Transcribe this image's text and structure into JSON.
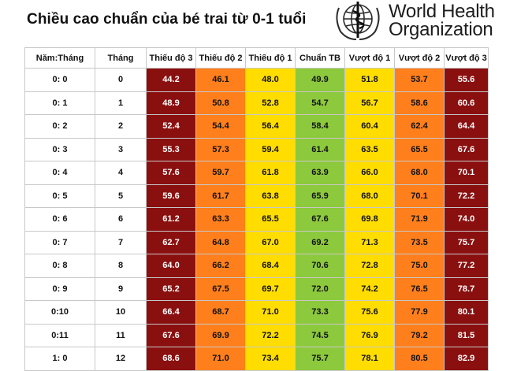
{
  "title": "Chiều cao chuẩn của bé trai từ 0-1 tuổi",
  "logo": {
    "line1": "World Health",
    "line2": "Organization",
    "icon": "who-emblem-icon"
  },
  "table": {
    "headers": [
      "Năm:Tháng",
      "Tháng",
      "Thiếu độ 3",
      "Thiếu độ 2",
      "Thiếu độ 1",
      "Chuẩn TB",
      "Vượt độ 1",
      "Vượt độ 2",
      "Vượt độ 3"
    ],
    "column_colors": [
      "#ffffff",
      "#ffffff",
      "#8a1010",
      "#ff7f1c",
      "#ffdd00",
      "#8cc93c",
      "#ffdd00",
      "#ff7f1c",
      "#8a1010"
    ],
    "rows": [
      [
        "0: 0",
        "0",
        "44.2",
        "46.1",
        "48.0",
        "49.9",
        "51.8",
        "53.7",
        "55.6"
      ],
      [
        "0: 1",
        "1",
        "48.9",
        "50.8",
        "52.8",
        "54.7",
        "56.7",
        "58.6",
        "60.6"
      ],
      [
        "0: 2",
        "2",
        "52.4",
        "54.4",
        "56.4",
        "58.4",
        "60.4",
        "62.4",
        "64.4"
      ],
      [
        "0: 3",
        "3",
        "55.3",
        "57.3",
        "59.4",
        "61.4",
        "63.5",
        "65.5",
        "67.6"
      ],
      [
        "0: 4",
        "4",
        "57.6",
        "59.7",
        "61.8",
        "63.9",
        "66.0",
        "68.0",
        "70.1"
      ],
      [
        "0: 5",
        "5",
        "59.6",
        "61.7",
        "63.8",
        "65.9",
        "68.0",
        "70.1",
        "72.2"
      ],
      [
        "0: 6",
        "6",
        "61.2",
        "63.3",
        "65.5",
        "67.6",
        "69.8",
        "71.9",
        "74.0"
      ],
      [
        "0: 7",
        "7",
        "62.7",
        "64.8",
        "67.0",
        "69.2",
        "71.3",
        "73.5",
        "75.7"
      ],
      [
        "0: 8",
        "8",
        "64.0",
        "66.2",
        "68.4",
        "70.6",
        "72.8",
        "75.0",
        "77.2"
      ],
      [
        "0: 9",
        "9",
        "65.2",
        "67.5",
        "69.7",
        "72.0",
        "74.2",
        "76.5",
        "78.7"
      ],
      [
        "0:10",
        "10",
        "66.4",
        "68.7",
        "71.0",
        "73.3",
        "75.6",
        "77.9",
        "80.1"
      ],
      [
        "0:11",
        "11",
        "67.6",
        "69.9",
        "72.2",
        "74.5",
        "76.9",
        "79.2",
        "81.5"
      ],
      [
        "1: 0",
        "12",
        "68.6",
        "71.0",
        "73.4",
        "75.7",
        "78.1",
        "80.5",
        "82.9"
      ]
    ]
  }
}
